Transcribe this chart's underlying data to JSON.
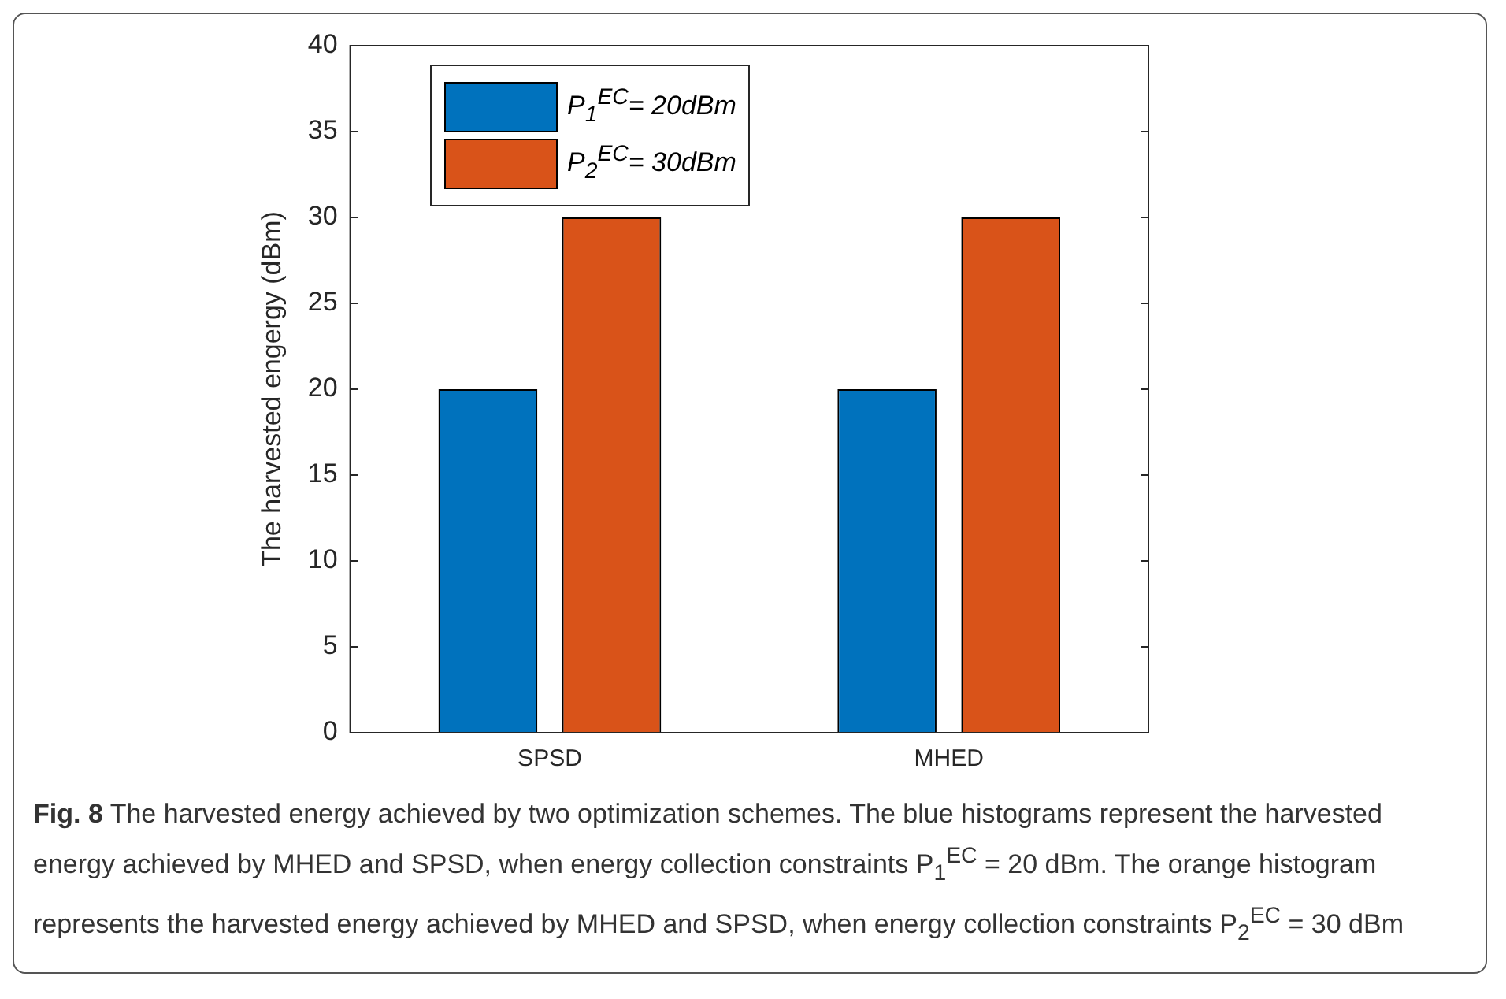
{
  "chart_data": {
    "type": "bar",
    "ylabel": "The harvested engergy (dBm)",
    "categories": [
      "SPSD",
      "MHED"
    ],
    "series": [
      {
        "name": "P$_{1}$$^{EC}$= 20dBm",
        "color": "#0072bd",
        "values": [
          20,
          20
        ]
      },
      {
        "name": "P$_{2}$$^{EC}$= 30dBm",
        "color": "#d95319",
        "values": [
          30,
          30
        ]
      }
    ],
    "ylim": [
      0,
      40
    ],
    "yticks": [
      0,
      5,
      10,
      15,
      20,
      25,
      30,
      35,
      40
    ],
    "grid": false,
    "legend": "top left",
    "annotations": [
      "Fig. 8 The harvested energy achieved by two optimization schemes. The blue histograms represent the harvested energy achieved by MHED and SPSD, when energy collection constraints P$_{1}$$^{EC}$ = 20 dBm. The orange histogram represents the harvested energy achieved by MHED and SPSD, when energy collection constraints P$_{2}$$^{EC}$ = 30 dBm"
    ]
  }
}
